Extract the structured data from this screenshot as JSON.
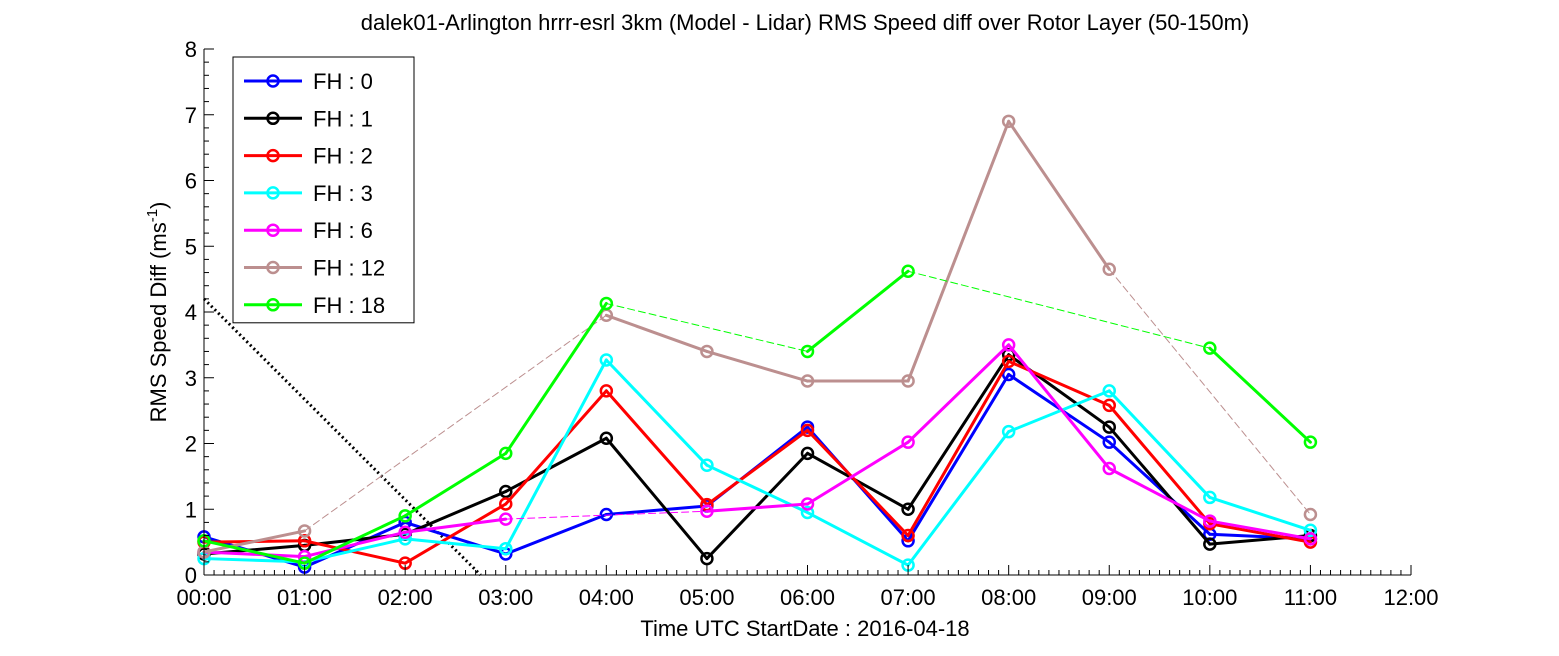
{
  "chart_data": {
    "type": "line",
    "title": "dalek01-Arlington hrrr-esrl 3km (Model - Lidar) RMS Speed diff over Rotor Layer (50-150m)",
    "xlabel": "Time UTC    StartDate : 2016-04-18",
    "ylabel_main": "RMS Speed Diff (ms",
    "ylabel_sup": "-1",
    "ylabel_close": ")",
    "xlim": [
      0,
      12
    ],
    "ylim": [
      0,
      8
    ],
    "x_ticks": [
      0,
      1,
      2,
      3,
      4,
      5,
      6,
      7,
      8,
      9,
      10,
      11,
      12
    ],
    "x_tick_labels": [
      "00:00",
      "01:00",
      "02:00",
      "03:00",
      "04:00",
      "05:00",
      "06:00",
      "07:00",
      "08:00",
      "09:00",
      "10:00",
      "11:00",
      "12:00"
    ],
    "y_ticks": [
      0,
      1,
      2,
      3,
      4,
      5,
      6,
      7,
      8
    ],
    "y_tick_labels": [
      "0",
      "1",
      "2",
      "3",
      "4",
      "5",
      "6",
      "7",
      "8"
    ],
    "grid": false,
    "legend_position": "top-left",
    "series": [
      {
        "name": "FH : 0",
        "color": "#0000ff",
        "points": [
          [
            0,
            0.58
          ],
          [
            1,
            0.12
          ],
          [
            2,
            0.8
          ],
          [
            3,
            0.32
          ],
          [
            4,
            0.92
          ],
          [
            5,
            1.05
          ],
          [
            6,
            2.25
          ],
          [
            7,
            0.52
          ],
          [
            8,
            3.05
          ],
          [
            9,
            2.02
          ],
          [
            10,
            0.62
          ],
          [
            11,
            0.55
          ]
        ]
      },
      {
        "name": "FH : 1",
        "color": "#000000",
        "points": [
          [
            0,
            0.32
          ],
          [
            1,
            0.45
          ],
          [
            2,
            0.62
          ],
          [
            3,
            1.27
          ],
          [
            4,
            2.08
          ],
          [
            5,
            0.25
          ],
          [
            6,
            1.85
          ],
          [
            7,
            1.0
          ],
          [
            8,
            3.35
          ],
          [
            9,
            2.25
          ],
          [
            10,
            0.47
          ],
          [
            11,
            0.6
          ]
        ]
      },
      {
        "name": "FH : 2",
        "color": "#ff0000",
        "points": [
          [
            0,
            0.5
          ],
          [
            1,
            0.52
          ],
          [
            2,
            0.18
          ],
          [
            3,
            1.08
          ],
          [
            4,
            2.8
          ],
          [
            5,
            1.07
          ],
          [
            6,
            2.2
          ],
          [
            7,
            0.6
          ],
          [
            8,
            3.25
          ],
          [
            9,
            2.58
          ],
          [
            10,
            0.78
          ],
          [
            11,
            0.5
          ]
        ]
      },
      {
        "name": "FH : 3",
        "color": "#00ffff",
        "points": [
          [
            0,
            0.25
          ],
          [
            1,
            0.2
          ],
          [
            2,
            0.55
          ],
          [
            3,
            0.4
          ],
          [
            4,
            3.27
          ],
          [
            5,
            1.67
          ],
          [
            6,
            0.95
          ],
          [
            7,
            0.15
          ],
          [
            8,
            2.18
          ],
          [
            9,
            2.8
          ],
          [
            10,
            1.18
          ],
          [
            11,
            0.68
          ]
        ]
      },
      {
        "name": "FH : 6",
        "color": "#ff00ff",
        "points": [
          [
            0,
            0.35
          ],
          [
            1,
            0.28
          ],
          [
            2,
            0.65
          ],
          [
            3,
            0.85
          ],
          [
            5,
            0.97
          ],
          [
            6,
            1.08
          ],
          [
            7,
            2.02
          ],
          [
            8,
            3.5
          ],
          [
            9,
            1.62
          ],
          [
            10,
            0.82
          ],
          [
            11,
            0.55
          ]
        ]
      },
      {
        "name": "FH : 12",
        "color": "#bc8f8f",
        "points": [
          [
            0,
            0.35
          ],
          [
            1,
            0.67
          ],
          [
            4,
            3.95
          ],
          [
            5,
            3.4
          ],
          [
            6,
            2.95
          ],
          [
            7,
            2.95
          ],
          [
            8,
            6.9
          ],
          [
            9,
            4.65
          ],
          [
            11,
            0.92
          ]
        ]
      },
      {
        "name": "FH : 18",
        "color": "#00ff00",
        "points": [
          [
            0,
            0.52
          ],
          [
            1,
            0.18
          ],
          [
            2,
            0.9
          ],
          [
            3,
            1.85
          ],
          [
            4,
            4.13
          ],
          [
            6,
            3.4
          ],
          [
            7,
            4.62
          ],
          [
            10,
            3.45
          ],
          [
            11,
            2.02
          ]
        ]
      }
    ],
    "reference_line": {
      "style": "dotted",
      "color": "#000000",
      "points": [
        [
          0,
          4.2
        ],
        [
          2.75,
          0
        ]
      ]
    }
  }
}
